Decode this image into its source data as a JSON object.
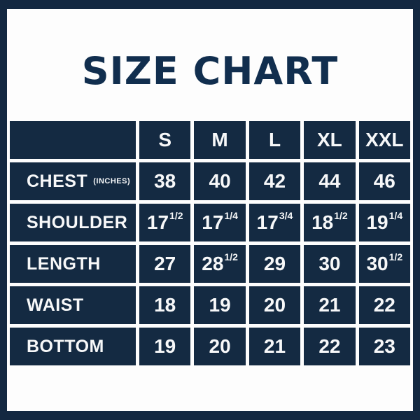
{
  "title": "SIZE CHART",
  "chart_data": {
    "type": "table",
    "title": "SIZE CHART",
    "columns": [
      "S",
      "M",
      "L",
      "XL",
      "XXL"
    ],
    "rows": [
      {
        "label": "CHEST",
        "note": "(INCHES)",
        "values": [
          "38",
          "40",
          "42",
          "44",
          "46"
        ]
      },
      {
        "label": "SHOULDER",
        "note": "",
        "values": [
          "17 1/2",
          "17 1/4",
          "17 3/4",
          "18 1/2",
          "19 1/4"
        ]
      },
      {
        "label": "LENGTH",
        "note": "",
        "values": [
          "27",
          "28 1/2",
          "29",
          "30",
          "30 1/2"
        ]
      },
      {
        "label": "WAIST",
        "note": "",
        "values": [
          "18",
          "19",
          "20",
          "21",
          "22"
        ]
      },
      {
        "label": "BOTTOM",
        "note": "",
        "values": [
          "19",
          "20",
          "21",
          "22",
          "23"
        ]
      }
    ],
    "layout_hints": {
      "header_position": "top",
      "label_column": "left",
      "grid": "white gaps between solid navy cells",
      "units": "inches"
    }
  },
  "colors": {
    "frame_navy": "#132841",
    "cell_navy": "#142a42",
    "title_navy": "#112e4e",
    "background": "#fdfdfd",
    "text_on_navy": "#f7f8f9"
  }
}
